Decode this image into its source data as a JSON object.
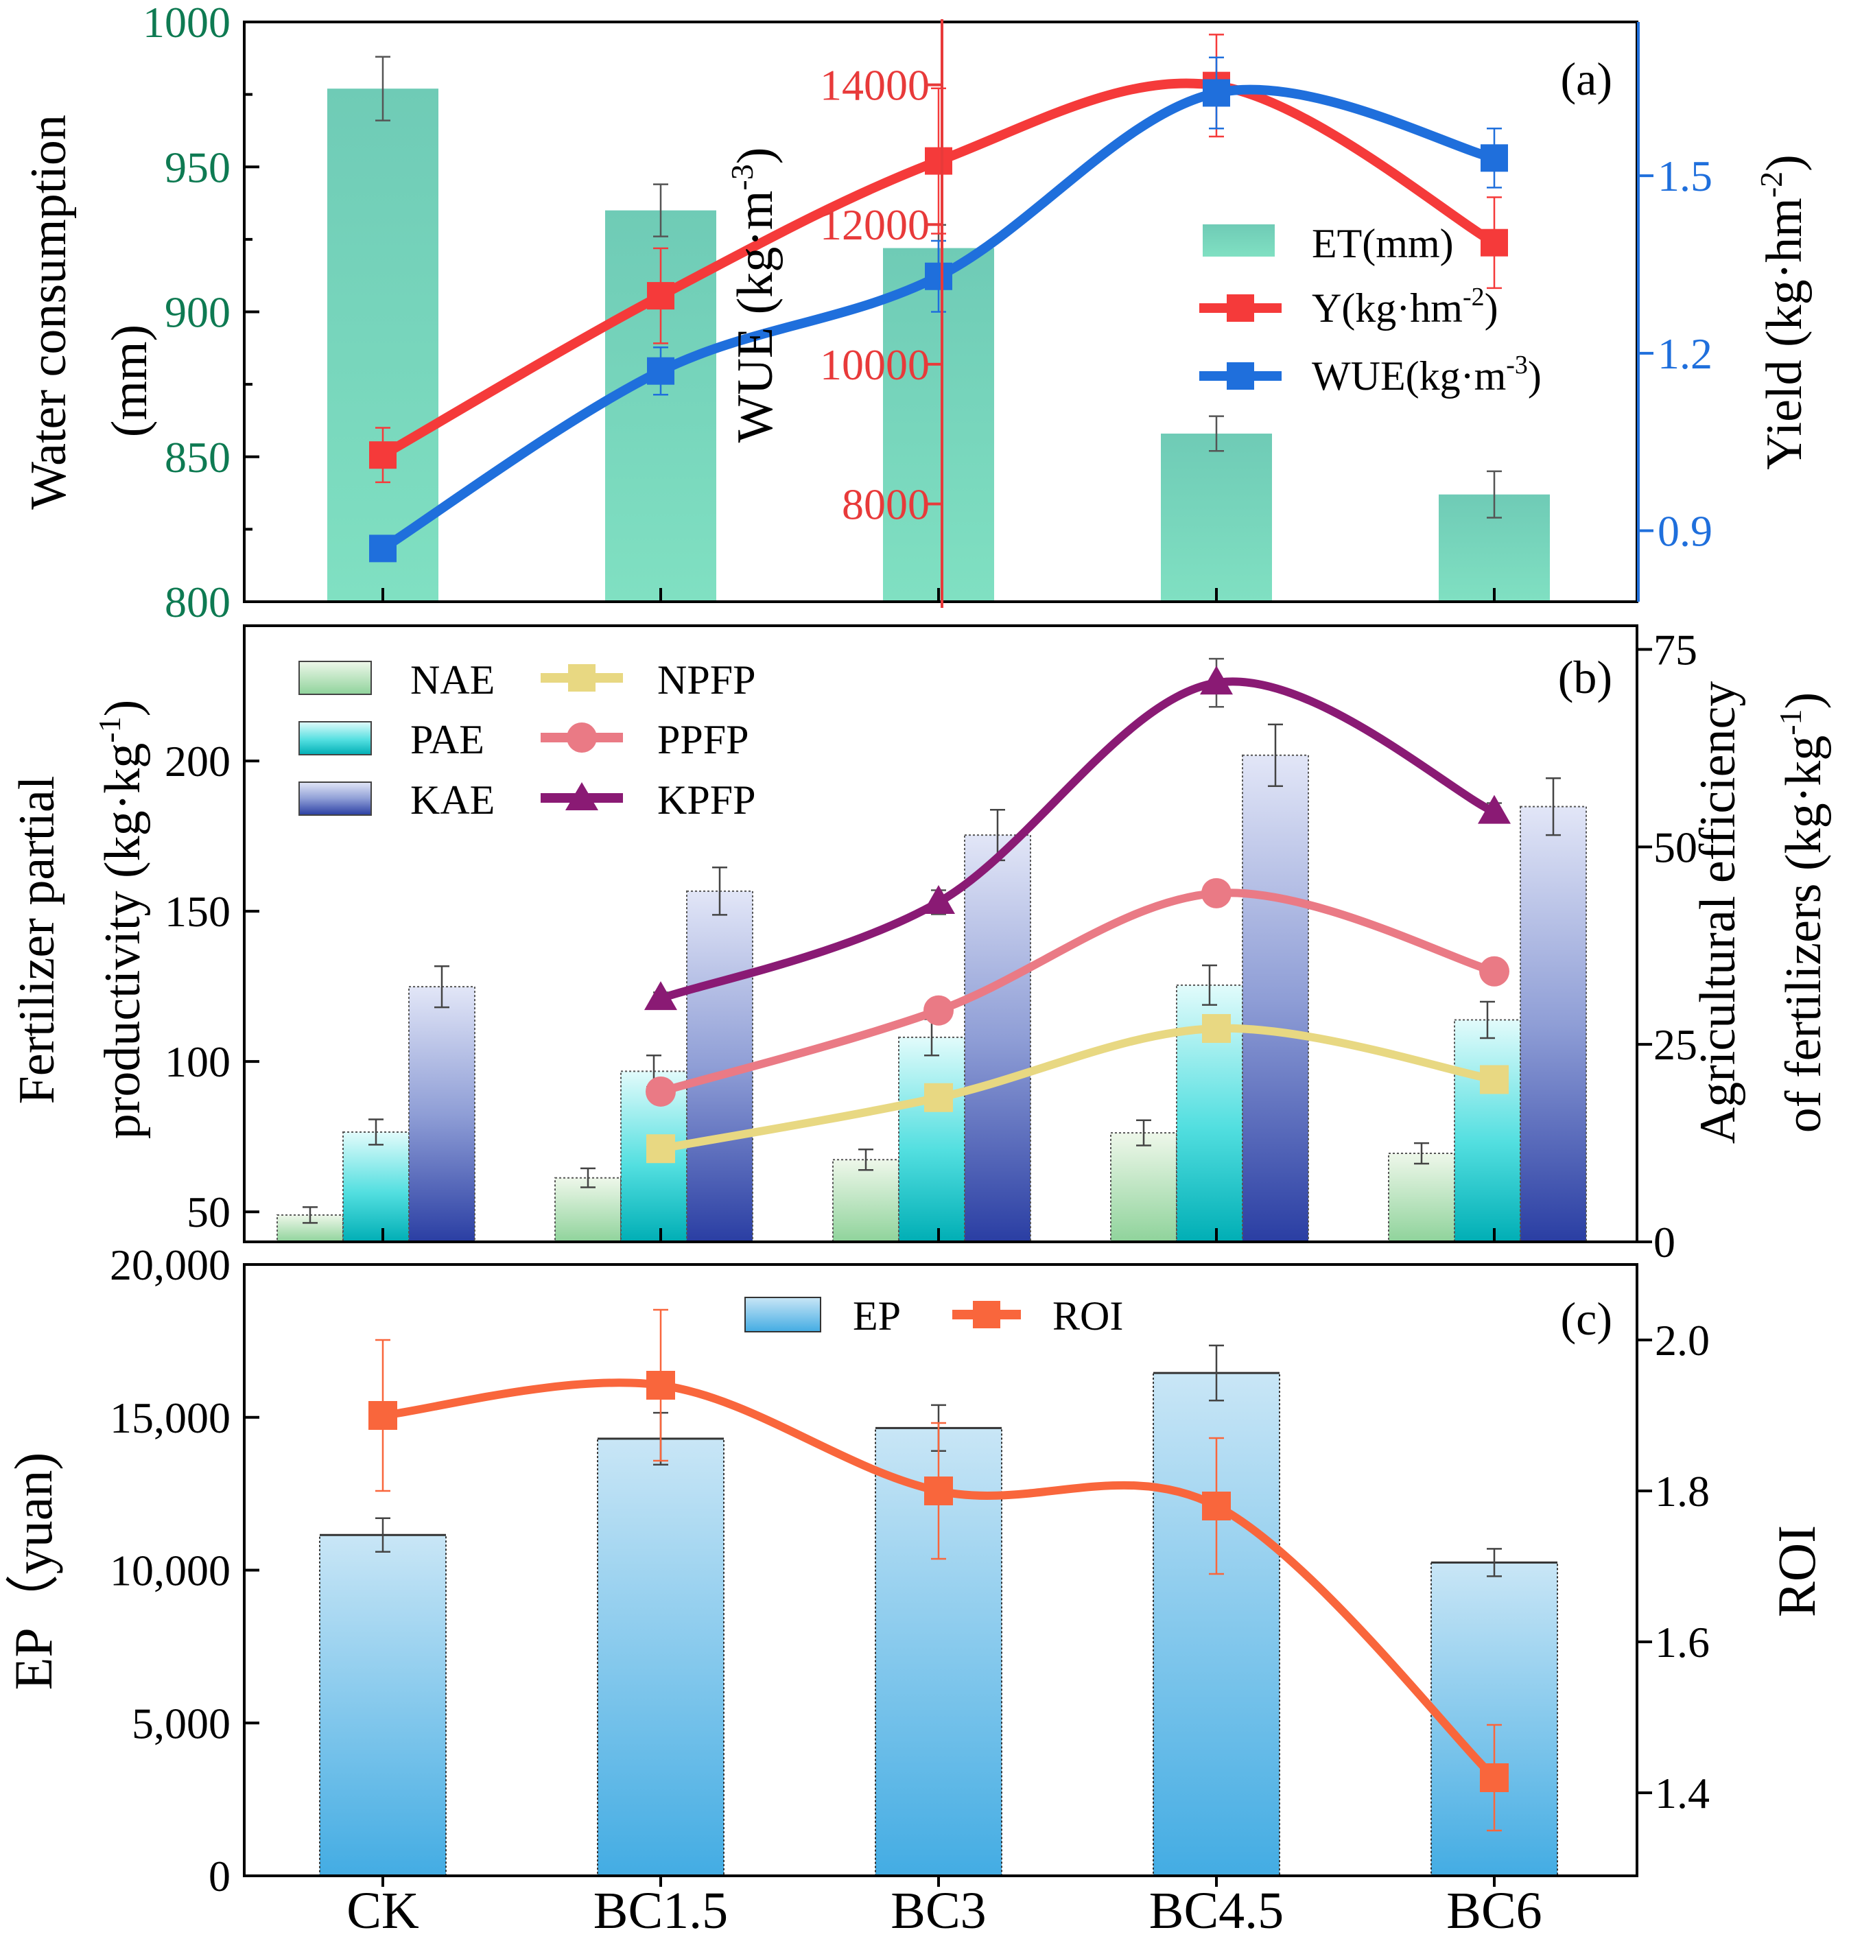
{
  "chart_data": [
    {
      "panel": "(a)",
      "type": "bar+line",
      "categories": [
        "CK",
        "BC1.5",
        "BC3",
        "BC4.5",
        "BC6"
      ],
      "y_left_label": "Water consumption (mm)",
      "y_left_label_lines": [
        "Water consumption",
        "(mm)"
      ],
      "y_left_range": [
        800,
        1000
      ],
      "y_left_ticks": [
        "800",
        "850",
        "900",
        "950",
        "1000"
      ],
      "y_mid_label_main": "WUE (kg·m",
      "y_mid_label_sup": "-3",
      "y_mid_label_end": ")",
      "y_mid_range": [
        6600,
        14900
      ],
      "y_mid_ticks": [
        "8000",
        "10000",
        "12000",
        "14000"
      ],
      "y_right_label_main": "Yield (kg·hm",
      "y_right_label_sup": "-2",
      "y_right_label_end": ")",
      "y_right_range": [
        0.78,
        1.76
      ],
      "y_right_ticks": [
        "0.9",
        "1.2",
        "1.5"
      ],
      "legend": [
        {
          "main": "ET(mm)",
          "sup": "",
          "end": ""
        },
        {
          "main": "Y(kg·hm",
          "sup": "-2",
          "end": ")"
        },
        {
          "main": "WUE(kg·m",
          "sup": "-3",
          "end": ")"
        }
      ],
      "series": [
        {
          "name": "ET(mm)",
          "axis": "left",
          "kind": "bar",
          "color": "#7ddcc0",
          "values": [
            977,
            935,
            922,
            858,
            837
          ],
          "errors": [
            11,
            9,
            8,
            6,
            8
          ]
        },
        {
          "name": "Y(kg·hm-2)",
          "axis": "mid",
          "kind": "line",
          "color": "#f53a3a",
          "values": [
            8700,
            10980,
            12910,
            13990,
            11740
          ],
          "errors": [
            390,
            680,
            1040,
            730,
            650
          ]
        },
        {
          "name": "WUE(kg·m-3)",
          "axis": "right",
          "kind": "line",
          "color": "#1f6fdc",
          "values": [
            0.87,
            1.17,
            1.33,
            1.64,
            1.53
          ],
          "errors": [
            0.02,
            0.04,
            0.06,
            0.06,
            0.05
          ]
        }
      ]
    },
    {
      "panel": "(b)",
      "type": "bar+line",
      "categories": [
        "CK",
        "BC1.5",
        "BC3",
        "BC4.5",
        "BC6"
      ],
      "y_left_label_lines": [
        "Fertilizer partial",
        "productivity (kg·kg"
      ],
      "y_left_label_sup": "-1",
      "y_left_label_end": ")",
      "y_left_range": [
        40,
        245
      ],
      "y_left_ticks": [
        "50",
        "100",
        "150",
        "200"
      ],
      "y_right_label_lines": [
        "Agricultural efficiency",
        "of fertilizers (kg·kg"
      ],
      "y_right_label_sup": "-1",
      "y_right_label_end": ")",
      "y_right_range": [
        0,
        78
      ],
      "y_right_ticks": [
        "0",
        "25",
        "50",
        "75"
      ],
      "legend": [
        "NAE",
        "PAE",
        "KAE",
        "NPFP",
        "PPFP",
        "KPFP"
      ],
      "bars": [
        {
          "name": "NAE",
          "values": [
            3.4,
            8.1,
            10.4,
            13.8,
            11.2
          ],
          "errors": [
            1.0,
            1.2,
            1.3,
            1.6,
            1.3
          ]
        },
        {
          "name": "PAE",
          "values": [
            13.9,
            21.6,
            25.9,
            32.5,
            28.1
          ],
          "errors": [
            1.6,
            2.0,
            2.3,
            2.5,
            2.3
          ]
        },
        {
          "name": "KAE",
          "values": [
            32.3,
            44.4,
            51.5,
            61.6,
            55.1
          ],
          "errors": [
            2.6,
            3.0,
            3.2,
            3.9,
            3.6
          ]
        }
      ],
      "lines": [
        {
          "name": "NPFP",
          "color": "#e8d882",
          "values": [
            null,
            71,
            88,
            111,
            94
          ]
        },
        {
          "name": "PPFP",
          "color": "#ea7a85",
          "values": [
            null,
            90,
            117,
            156,
            130
          ]
        },
        {
          "name": "KPFP",
          "color": "#8a1a74",
          "values": [
            null,
            121,
            153,
            226,
            183
          ],
          "errors": [
            null,
            2,
            4,
            8,
            3
          ]
        }
      ]
    },
    {
      "panel": "(c)",
      "type": "bar+line",
      "categories": [
        "CK",
        "BC1.5",
        "BC3",
        "BC4.5",
        "BC6"
      ],
      "y_left_label": "EP（yuan)",
      "y_left_range": [
        0,
        20000
      ],
      "y_left_ticks": [
        "0",
        "5,000",
        "10,000",
        "15,000",
        "20,000"
      ],
      "y_right_label": "ROI",
      "y_right_range": [
        1.29,
        2.1
      ],
      "y_right_ticks": [
        "1.4",
        "1.6",
        "1.8",
        "2.0"
      ],
      "legend": [
        "EP",
        "ROI"
      ],
      "series": [
        {
          "name": "EP",
          "axis": "left",
          "kind": "bar",
          "color": "#4fb0e6",
          "values": [
            11150,
            14300,
            14650,
            16450,
            10250
          ],
          "errors": [
            550,
            850,
            750,
            900,
            450
          ]
        },
        {
          "name": "ROI",
          "axis": "right",
          "kind": "line",
          "color": "#f9663c",
          "values": [
            1.9,
            1.94,
            1.8,
            1.78,
            1.42
          ],
          "errors": [
            0.1,
            0.1,
            0.09,
            0.09,
            0.07
          ]
        }
      ]
    }
  ]
}
